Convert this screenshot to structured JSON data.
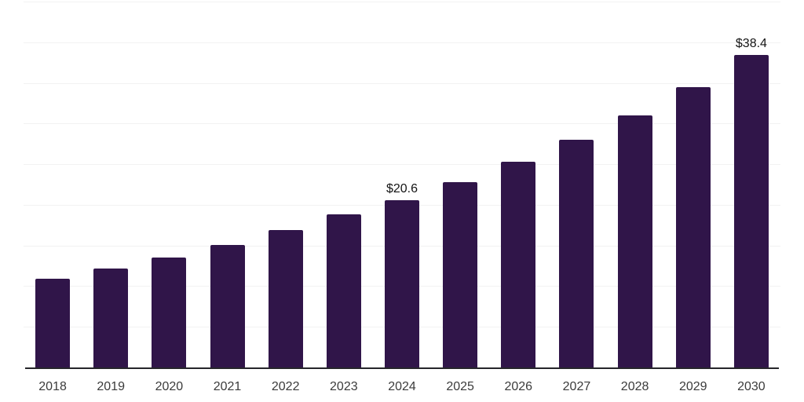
{
  "chart_data": {
    "type": "bar",
    "title": "",
    "xlabel": "",
    "ylabel": "",
    "categories": [
      "2018",
      "2019",
      "2020",
      "2021",
      "2022",
      "2023",
      "2024",
      "2025",
      "2026",
      "2027",
      "2028",
      "2029",
      "2030"
    ],
    "values": [
      10.9,
      12.2,
      13.5,
      15.1,
      16.9,
      18.8,
      20.6,
      22.8,
      25.3,
      28.0,
      31.0,
      34.5,
      38.4
    ],
    "data_labels": {
      "2024": "$20.6",
      "2030": "$38.4"
    },
    "ylim": [
      0,
      45
    ],
    "gridline_step": 5,
    "grid": true,
    "legend": "none",
    "y_axis_tick_labels_visible": false,
    "colors": {
      "bar": "#301549",
      "axis_line": "#26262b",
      "gridline": "#f2f2f2",
      "tick_label": "#3b3b3b",
      "value_label": "#141414",
      "background": "#ffffff"
    }
  }
}
